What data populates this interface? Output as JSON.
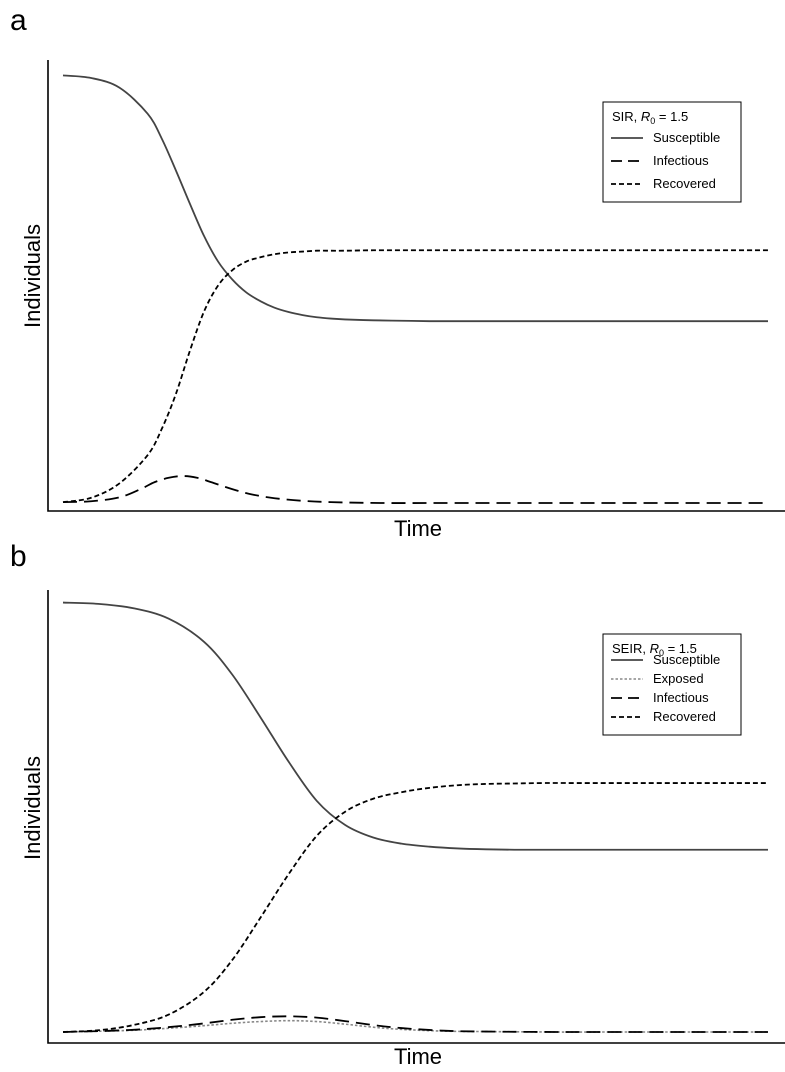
{
  "chart_data": [
    {
      "type": "line",
      "panel_label": "a",
      "legend_title": "SIR, R0 = 1.5",
      "legend_title_parts": {
        "model": "SIR, ",
        "symbol": "R",
        "subscript": "0",
        "value": " = 1.5"
      },
      "xlabel": "Time",
      "ylabel": "Individuals",
      "ylim": [
        0,
        1
      ],
      "xlim": [
        0,
        100
      ],
      "legend_position": "top-right",
      "grid": false,
      "series": [
        {
          "name": "Susceptible",
          "style": "solid",
          "color": "#444444",
          "x": [
            0,
            4,
            8,
            12,
            14,
            16,
            18,
            20,
            22,
            24,
            26,
            28,
            30,
            32,
            34,
            36,
            38,
            40,
            44,
            48,
            52,
            56,
            60,
            70,
            80,
            90,
            100
          ],
          "y": [
            0.983,
            0.977,
            0.955,
            0.895,
            0.838,
            0.765,
            0.688,
            0.614,
            0.555,
            0.514,
            0.484,
            0.464,
            0.449,
            0.439,
            0.432,
            0.427,
            0.424,
            0.422,
            0.42,
            0.419,
            0.418,
            0.418,
            0.418,
            0.418,
            0.418,
            0.418,
            0.418
          ]
        },
        {
          "name": "Infectious",
          "style": "dashed",
          "color": "#000000",
          "x": [
            0,
            4,
            8,
            11,
            13,
            15,
            17,
            19,
            21,
            23,
            25,
            27,
            30,
            34,
            38,
            45,
            55,
            70,
            100
          ],
          "y": [
            0.002,
            0.004,
            0.013,
            0.032,
            0.048,
            0.058,
            0.062,
            0.058,
            0.048,
            0.037,
            0.027,
            0.019,
            0.011,
            0.005,
            0.002,
            0.0,
            0.0,
            0.0,
            0.0
          ]
        },
        {
          "name": "Recovered",
          "style": "dotted",
          "color": "#000000",
          "x": [
            0,
            4,
            8,
            12,
            14,
            16,
            18,
            20,
            22,
            24,
            26,
            28,
            30,
            32,
            34,
            36,
            38,
            40,
            44,
            48,
            52,
            56,
            60,
            70,
            80,
            90,
            100
          ],
          "y": [
            0.002,
            0.012,
            0.045,
            0.11,
            0.17,
            0.25,
            0.35,
            0.44,
            0.5,
            0.535,
            0.555,
            0.565,
            0.572,
            0.576,
            0.578,
            0.58,
            0.58,
            0.58,
            0.581,
            0.581,
            0.581,
            0.581,
            0.581,
            0.581,
            0.581,
            0.581,
            0.581
          ]
        }
      ]
    },
    {
      "type": "line",
      "panel_label": "b",
      "legend_title": "SEIR, R0 = 1.5",
      "legend_title_parts": {
        "model": "SEIR, ",
        "symbol": "R",
        "subscript": "0",
        "value": " = 1.5"
      },
      "xlabel": "Time",
      "ylabel": "Individuals",
      "ylim": [
        0,
        1
      ],
      "xlim": [
        0,
        100
      ],
      "legend_position": "top-right",
      "grid": false,
      "series": [
        {
          "name": "Susceptible",
          "style": "solid",
          "color": "#444444",
          "x": [
            0,
            5,
            10,
            15,
            20,
            24,
            28,
            32,
            36,
            40,
            44,
            48,
            52,
            56,
            60,
            64,
            68,
            72,
            80,
            90,
            100
          ],
          "y": [
            0.985,
            0.982,
            0.972,
            0.948,
            0.895,
            0.82,
            0.722,
            0.62,
            0.53,
            0.475,
            0.446,
            0.432,
            0.425,
            0.421,
            0.419,
            0.418,
            0.418,
            0.418,
            0.418,
            0.418,
            0.418
          ]
        },
        {
          "name": "Exposed",
          "style": "dotted-fine",
          "color": "#888888",
          "x": [
            0,
            10,
            18,
            24,
            28,
            32,
            36,
            40,
            44,
            48,
            54,
            60,
            70,
            80,
            100
          ],
          "y": [
            0.0,
            0.004,
            0.012,
            0.02,
            0.024,
            0.026,
            0.024,
            0.018,
            0.011,
            0.006,
            0.002,
            0.001,
            0.0,
            0.0,
            0.0
          ]
        },
        {
          "name": "Infectious",
          "style": "dashed",
          "color": "#000000",
          "x": [
            0,
            10,
            18,
            24,
            28,
            32,
            36,
            40,
            44,
            48,
            54,
            60,
            70,
            80,
            100
          ],
          "y": [
            0.0,
            0.005,
            0.016,
            0.028,
            0.034,
            0.036,
            0.033,
            0.025,
            0.016,
            0.009,
            0.003,
            0.001,
            0.0,
            0.0,
            0.0
          ]
        },
        {
          "name": "Recovered",
          "style": "dotted",
          "color": "#000000",
          "x": [
            0,
            5,
            10,
            15,
            20,
            24,
            28,
            32,
            36,
            40,
            44,
            48,
            52,
            56,
            60,
            64,
            68,
            72,
            80,
            90,
            100
          ],
          "y": [
            0.0,
            0.004,
            0.016,
            0.04,
            0.092,
            0.165,
            0.262,
            0.362,
            0.45,
            0.505,
            0.535,
            0.55,
            0.56,
            0.566,
            0.569,
            0.57,
            0.571,
            0.571,
            0.571,
            0.571,
            0.571
          ]
        }
      ]
    }
  ]
}
